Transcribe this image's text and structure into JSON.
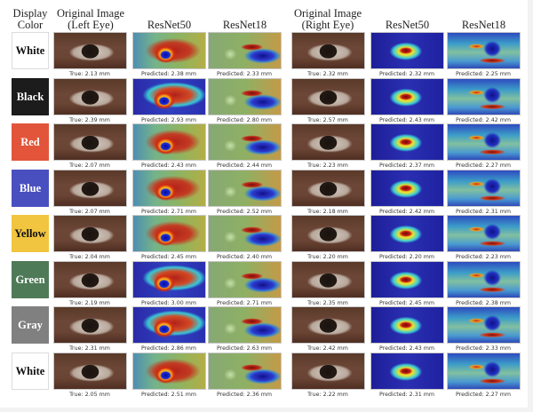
{
  "figure": {
    "headers": {
      "display_color": "Display\nColor",
      "display_line1": "Display",
      "display_line2": "Color",
      "left_original_line1": "Original Image",
      "left_original_line2": "(Left Eye)",
      "left_resnet50": "ResNet50",
      "left_resnet18": "ResNet18",
      "right_original_line1": "Original Image",
      "right_original_line2": "(Right Eye)",
      "right_resnet50": "ResNet50",
      "right_resnet18": "ResNet18"
    },
    "rows": [
      {
        "color_name": "White",
        "swatch_hex": "#ffffff",
        "text_hex": "#111111",
        "left": {
          "true": "True: 2.13 mm",
          "resnet50": "Predicted: 2.38 mm",
          "resnet18": "Predicted: 2.33 mm"
        },
        "right": {
          "true": "True: 2.32 mm",
          "resnet50": "Predicted: 2.32 mm",
          "resnet18": "Predicted: 2.25 mm"
        }
      },
      {
        "color_name": "Black",
        "swatch_hex": "#1c1c1c",
        "text_hex": "#ffffff",
        "left": {
          "true": "True: 2.39 mm",
          "resnet50": "Predicted: 2.93 mm",
          "resnet18": "Predicted: 2.80 mm"
        },
        "right": {
          "true": "True: 2.57 mm",
          "resnet50": "Predicted: 2.43 mm",
          "resnet18": "Predicted: 2.42 mm"
        }
      },
      {
        "color_name": "Red",
        "swatch_hex": "#e2553a",
        "text_hex": "#ffffff",
        "left": {
          "true": "True: 2.07 mm",
          "resnet50": "Predicted: 2.43 mm",
          "resnet18": "Predicted: 2.44 mm"
        },
        "right": {
          "true": "True: 2.23 mm",
          "resnet50": "Predicted: 2.37 mm",
          "resnet18": "Predicted: 2.27 mm"
        }
      },
      {
        "color_name": "Blue",
        "swatch_hex": "#4a4fc0",
        "text_hex": "#ffffff",
        "left": {
          "true": "True: 2.07 mm",
          "resnet50": "Predicted: 2.71 mm",
          "resnet18": "Predicted: 2.52 mm"
        },
        "right": {
          "true": "True: 2.18 mm",
          "resnet50": "Predicted: 2.42 mm",
          "resnet18": "Predicted: 2.31 mm"
        }
      },
      {
        "color_name": "Yellow",
        "swatch_hex": "#f1c53f",
        "text_hex": "#111111",
        "left": {
          "true": "True: 2.04 mm",
          "resnet50": "Predicted: 2.45 mm",
          "resnet18": "Predicted: 2.40 mm"
        },
        "right": {
          "true": "True: 2.20 mm",
          "resnet50": "Predicted: 2.20 mm",
          "resnet18": "Predicted: 2.23 mm"
        }
      },
      {
        "color_name": "Green",
        "swatch_hex": "#4e7a57",
        "text_hex": "#ffffff",
        "left": {
          "true": "True: 2.19 mm",
          "resnet50": "Predicted: 3.00 mm",
          "resnet18": "Predicted: 2.71 mm"
        },
        "right": {
          "true": "True: 2.35 mm",
          "resnet50": "Predicted: 2.45 mm",
          "resnet18": "Predicted: 2.38 mm"
        }
      },
      {
        "color_name": "Gray",
        "swatch_hex": "#808080",
        "text_hex": "#ffffff",
        "left": {
          "true": "True: 2.31 mm",
          "resnet50": "Predicted: 2.86 mm",
          "resnet18": "Predicted: 2.63 mm"
        },
        "right": {
          "true": "True: 2.42 mm",
          "resnet50": "Predicted: 2.43 mm",
          "resnet18": "Predicted: 2.33 mm"
        }
      },
      {
        "color_name": "White",
        "swatch_hex": "#ffffff",
        "text_hex": "#111111",
        "left": {
          "true": "True: 2.05 mm",
          "resnet50": "Predicted: 2.51 mm",
          "resnet18": "Predicted: 2.36 mm"
        },
        "right": {
          "true": "True: 2.22 mm",
          "resnet50": "Predicted: 2.31 mm",
          "resnet18": "Predicted: 2.27 mm"
        }
      }
    ]
  },
  "colors": {
    "page_bg": "#ffffff",
    "outer_bg": "#f2f2f2",
    "caption_text": "#333333",
    "header_text": "#222222"
  }
}
